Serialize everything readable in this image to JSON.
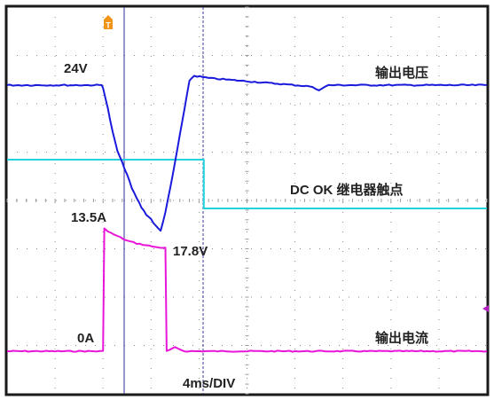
{
  "chart_data": {
    "type": "line",
    "title": "",
    "xlabel": "",
    "ylabel": "",
    "time_div_label": "4ms/DIV",
    "x_unit": "ms",
    "x_range_ms": [
      -9.6,
      30.4
    ],
    "grid": true,
    "trigger_marker": "T",
    "series": [
      {
        "name": "输出电压",
        "color": "#1a1adc",
        "points_ms_V": [
          [
            -9.6,
            24.0
          ],
          [
            -7.2,
            24.0
          ],
          [
            -4.8,
            24.0
          ],
          [
            -2.4,
            24.0
          ],
          [
            -1.7,
            24.0
          ],
          [
            -1.6,
            23.9
          ],
          [
            -1.2,
            23.0
          ],
          [
            -0.8,
            22.0
          ],
          [
            -0.4,
            21.2
          ],
          [
            0.0,
            20.7
          ],
          [
            0.4,
            20.2
          ],
          [
            0.8,
            19.6
          ],
          [
            1.2,
            19.2
          ],
          [
            1.6,
            18.8
          ],
          [
            2.0,
            18.5
          ],
          [
            2.4,
            18.3
          ],
          [
            2.8,
            18.0
          ],
          [
            3.2,
            17.8
          ],
          [
            3.6,
            18.6
          ],
          [
            4.0,
            19.6
          ],
          [
            4.4,
            20.7
          ],
          [
            4.8,
            21.9
          ],
          [
            5.2,
            23.0
          ],
          [
            5.6,
            24.2
          ],
          [
            6.0,
            24.4
          ],
          [
            7.2,
            24.3
          ],
          [
            8.4,
            24.25
          ],
          [
            10.8,
            24.15
          ],
          [
            13.2,
            24.05
          ],
          [
            15.6,
            23.95
          ],
          [
            16.4,
            23.8
          ],
          [
            17.2,
            24.0
          ],
          [
            19.2,
            24.0
          ],
          [
            22.0,
            24.0
          ],
          [
            25.6,
            24.0
          ],
          [
            28.0,
            24.0
          ],
          [
            30.4,
            24.0
          ]
        ],
        "labels": [
          "24V",
          "17.8V"
        ]
      },
      {
        "name": "DC OK 继电器触点",
        "color": "#22d3dd",
        "points_ms": [
          [
            -9.6,
            1
          ],
          [
            6.8,
            1
          ],
          [
            6.8,
            0
          ],
          [
            30.4,
            0
          ]
        ]
      },
      {
        "name": "输出电流",
        "color": "#e815d8",
        "points_ms_A": [
          [
            -9.6,
            0.0
          ],
          [
            -1.6,
            0.0
          ],
          [
            -1.5,
            13.5
          ],
          [
            -1.2,
            13.1
          ],
          [
            -0.4,
            12.6
          ],
          [
            0.4,
            12.1
          ],
          [
            1.2,
            11.8
          ],
          [
            2.0,
            11.6
          ],
          [
            2.8,
            11.4
          ],
          [
            3.6,
            11.3
          ],
          [
            3.7,
            0.0
          ],
          [
            4.4,
            0.4
          ],
          [
            5.2,
            0.0
          ],
          [
            30.4,
            0.0
          ]
        ],
        "labels": [
          "13.5A",
          "0A"
        ]
      }
    ]
  }
}
